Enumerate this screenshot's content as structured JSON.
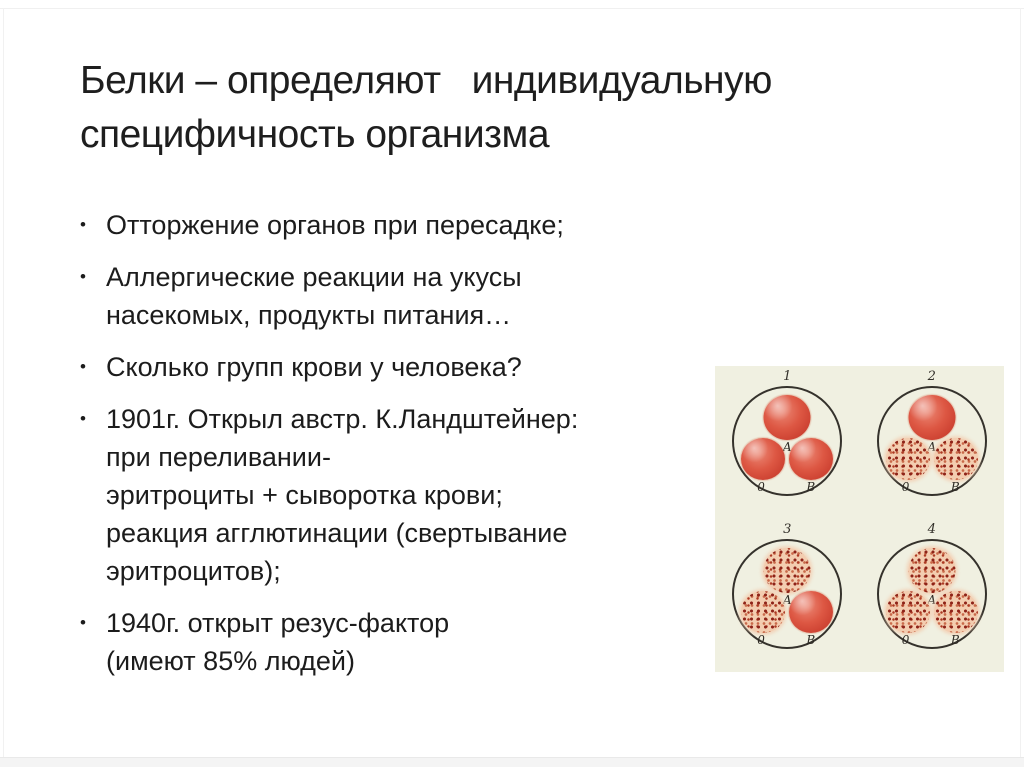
{
  "slide": {
    "title_lines": [
      "Белки – определяют   индивидуальную",
      "специфичность организма"
    ],
    "bullet_marker": "•",
    "bullets": [
      {
        "lines": [
          "Отторжение органов при пересадке;"
        ]
      },
      {
        "lines": [
          "Аллергические реакции на укусы",
          "насекомых, продукты питания…"
        ]
      },
      {
        "lines": [
          "Сколько групп крови у человека?"
        ]
      },
      {
        "lines": [
          "1901г. Открыл австр. К.Ландштейнер:",
          "при переливании-",
          "эритроциты + сыворотка крови;",
          "реакция агглютинации (свертывание",
          "эритроцитов);"
        ]
      },
      {
        "lines": [
          "1940г. открыт резус-фактор",
          "(имеют 85% людей)"
        ]
      }
    ],
    "figure": {
      "description": "blood-group-agglutination-test",
      "background_color": "#f0f0e1",
      "smooth_drop_color": "#d6463a",
      "agglutinated_base_color": "#f3cdb0",
      "speckle_color": "#8e2318",
      "circle_outline_color": "#35322c",
      "panels": [
        {
          "number": "1",
          "drops": [
            {
              "label": "А",
              "position": "top",
              "type": "smooth"
            },
            {
              "label": "0",
              "position": "bottom-left",
              "type": "smooth"
            },
            {
              "label": "В",
              "position": "bottom-right",
              "type": "smooth"
            }
          ]
        },
        {
          "number": "2",
          "drops": [
            {
              "label": "А",
              "position": "top",
              "type": "smooth"
            },
            {
              "label": "0",
              "position": "bottom-left",
              "type": "agglutinated"
            },
            {
              "label": "В",
              "position": "bottom-right",
              "type": "agglutinated"
            }
          ]
        },
        {
          "number": "3",
          "drops": [
            {
              "label": "А",
              "position": "top",
              "type": "agglutinated"
            },
            {
              "label": "0",
              "position": "bottom-left",
              "type": "agglutinated"
            },
            {
              "label": "В",
              "position": "bottom-right",
              "type": "smooth"
            }
          ]
        },
        {
          "number": "4",
          "drops": [
            {
              "label": "А",
              "position": "top",
              "type": "agglutinated"
            },
            {
              "label": "0",
              "position": "bottom-left",
              "type": "agglutinated"
            },
            {
              "label": "В",
              "position": "bottom-right",
              "type": "agglutinated"
            }
          ]
        }
      ]
    }
  }
}
